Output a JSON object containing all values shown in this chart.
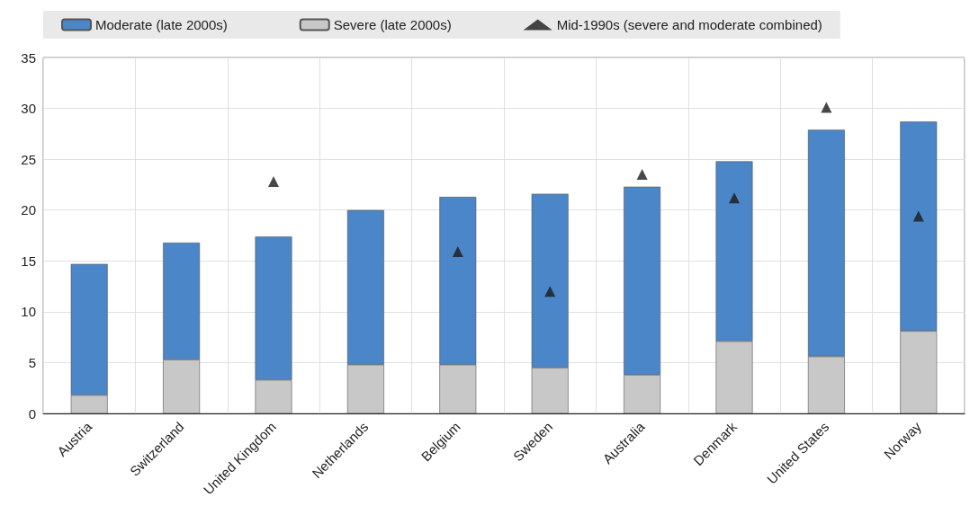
{
  "chart_data": {
    "type": "bar",
    "stacked": true,
    "categories": [
      "Austria",
      "Switzerland",
      "United Kingdom",
      "Netherlands",
      "Belgium",
      "Sweden",
      "Australia",
      "Denmark",
      "United States",
      "Norway"
    ],
    "series": [
      {
        "name": "Severe (late 2000s)",
        "color": "#c8c8c8",
        "values": [
          1.8,
          5.3,
          3.3,
          4.8,
          4.8,
          4.5,
          3.8,
          7.1,
          5.6,
          8.1
        ]
      },
      {
        "name": "Moderate (late 2000s)",
        "color": "#4a86c8",
        "values": [
          12.9,
          11.5,
          14.1,
          15.2,
          16.5,
          17.1,
          18.5,
          17.7,
          22.3,
          20.6
        ]
      },
      {
        "name": "Mid-1990s (severe and moderate combined)",
        "type": "scatter",
        "marker": "triangle",
        "color": "#1a1a1a",
        "x": [
          "United Kingdom",
          "Belgium",
          "Sweden",
          "Australia",
          "Denmark",
          "United States",
          "Norway"
        ],
        "values": [
          22.8,
          15.9,
          12.0,
          23.5,
          21.2,
          30.1,
          19.4
        ]
      }
    ],
    "ylim": [
      0,
      35
    ],
    "yticks": [
      0,
      5,
      10,
      15,
      20,
      25,
      30,
      35
    ],
    "grid": true,
    "legend": "top"
  }
}
